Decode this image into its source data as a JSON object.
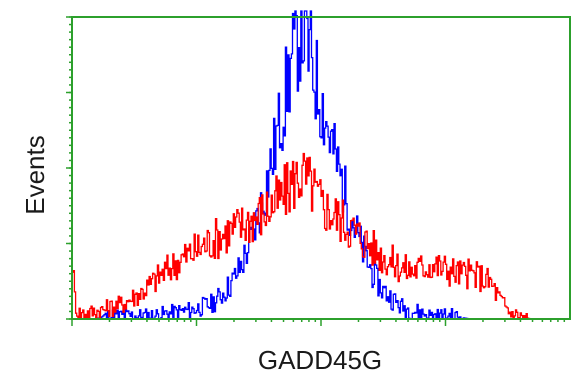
{
  "chart_data": {
    "type": "line",
    "title": "",
    "xlabel": "GADD45G",
    "ylabel": "Events",
    "xlim": [
      0,
      1
    ],
    "ylim": [
      0,
      1
    ],
    "x_scale": "log",
    "grid": false,
    "legend": "none",
    "frame_color": "#2ca02c",
    "series": [
      {
        "color": "#0000ff",
        "x": [
          0.0,
          0.04,
          0.08,
          0.12,
          0.16,
          0.2,
          0.24,
          0.28,
          0.3,
          0.32,
          0.34,
          0.36,
          0.38,
          0.4,
          0.42,
          0.44,
          0.46,
          0.48,
          0.5,
          0.52,
          0.54,
          0.56,
          0.58,
          0.6,
          0.62,
          0.64,
          0.66,
          0.68,
          0.7,
          0.72,
          0.76,
          0.8,
          0.85,
          0.9,
          0.95,
          1.0
        ],
        "y": [
          0.0,
          0.0,
          0.01,
          0.01,
          0.01,
          0.02,
          0.03,
          0.05,
          0.08,
          0.12,
          0.18,
          0.27,
          0.38,
          0.52,
          0.68,
          0.85,
          0.98,
          0.85,
          0.72,
          0.58,
          0.46,
          0.34,
          0.24,
          0.16,
          0.1,
          0.07,
          0.04,
          0.03,
          0.02,
          0.01,
          0.01,
          0.0,
          0.0,
          0.0,
          0.0,
          0.0
        ]
      },
      {
        "color": "#ff0000",
        "x": [
          0.0,
          0.004,
          0.01,
          0.03,
          0.06,
          0.1,
          0.14,
          0.18,
          0.22,
          0.26,
          0.3,
          0.34,
          0.38,
          0.42,
          0.44,
          0.46,
          0.48,
          0.5,
          0.52,
          0.54,
          0.56,
          0.58,
          0.6,
          0.62,
          0.64,
          0.66,
          0.68,
          0.7,
          0.72,
          0.74,
          0.76,
          0.78,
          0.8,
          0.82,
          0.84,
          0.86,
          0.88,
          0.9,
          0.92,
          0.94,
          0.96,
          0.98,
          1.0
        ],
        "y": [
          0.2,
          0.08,
          0.02,
          0.02,
          0.03,
          0.05,
          0.09,
          0.15,
          0.2,
          0.24,
          0.28,
          0.31,
          0.35,
          0.4,
          0.45,
          0.48,
          0.44,
          0.38,
          0.35,
          0.33,
          0.3,
          0.27,
          0.24,
          0.21,
          0.19,
          0.17,
          0.16,
          0.17,
          0.18,
          0.17,
          0.16,
          0.15,
          0.15,
          0.14,
          0.12,
          0.06,
          0.02,
          0.01,
          0.0,
          0.0,
          0.0,
          0.0,
          0.0
        ]
      }
    ]
  }
}
